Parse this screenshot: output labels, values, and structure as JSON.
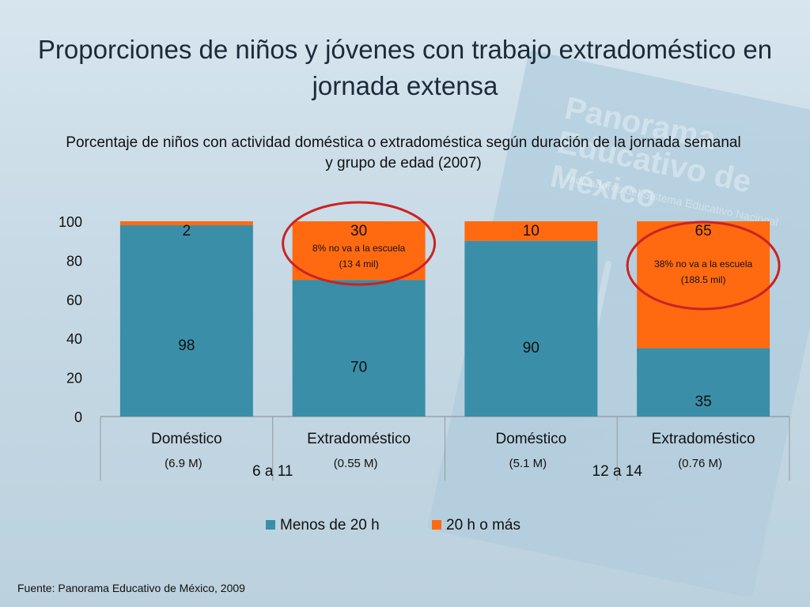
{
  "title": "Proporciones de niños y jóvenes con trabajo extradoméstico en jornada extensa",
  "background": {
    "book_title": "Panorama Educativo de México",
    "book_subtitle": "Indicadores del Sistema Educativo Nacional"
  },
  "chart_data": {
    "type": "bar",
    "stacked": true,
    "title": "Porcentaje de niños con actividad doméstica o extradoméstica según duración de la jornada semanal y grupo de edad  (2007)",
    "ylim": [
      0,
      100
    ],
    "yticks": [
      "0",
      "20",
      "40",
      "60",
      "80",
      "100"
    ],
    "categories": [
      "Doméstico",
      "Extradoméstico",
      "Doméstico",
      "Extradoméstico"
    ],
    "category_sizes": [
      "(6.9 M)",
      "(0.55 M)",
      "(5.1 M)",
      "(0.76 M)"
    ],
    "groups": [
      {
        "label": "6 a 11",
        "span": [
          0,
          1
        ]
      },
      {
        "label": "12 a 14",
        "span": [
          2,
          3
        ]
      }
    ],
    "series": [
      {
        "name": "Menos de 20 h",
        "color": "#3a8ea8",
        "values": [
          98,
          70,
          90,
          35
        ]
      },
      {
        "name": "20 h o más",
        "color": "#ff6a10",
        "values": [
          2,
          30,
          10,
          65
        ]
      }
    ],
    "annotations": [
      {
        "category_index": 1,
        "lines": [
          "8% no va a la escuela",
          "(13 4 mil)"
        ]
      },
      {
        "category_index": 3,
        "lines": [
          "38% no va a la escuela",
          "(188.5 mil)"
        ]
      }
    ],
    "legend_position": "bottom"
  },
  "source": "Fuente: Panorama Educativo de México, 2009"
}
